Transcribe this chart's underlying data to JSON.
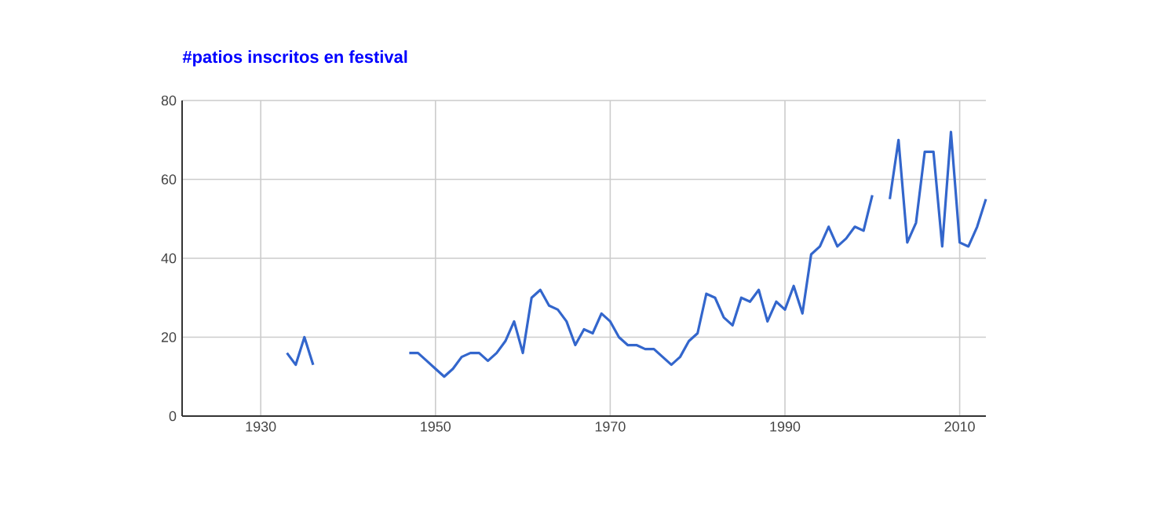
{
  "chart_data": {
    "type": "line",
    "title": "#patios inscritos en festival",
    "x": [
      1933,
      1934,
      1935,
      1936,
      1937,
      1947,
      1948,
      1949,
      1950,
      1951,
      1952,
      1953,
      1954,
      1955,
      1956,
      1957,
      1958,
      1959,
      1960,
      1961,
      1962,
      1963,
      1964,
      1965,
      1966,
      1967,
      1968,
      1969,
      1970,
      1971,
      1972,
      1973,
      1974,
      1975,
      1976,
      1977,
      1978,
      1979,
      1980,
      1981,
      1982,
      1983,
      1984,
      1985,
      1986,
      1987,
      1988,
      1989,
      1990,
      1991,
      1992,
      1993,
      1994,
      1995,
      1996,
      1997,
      1998,
      1999,
      2000,
      2001,
      2002,
      2003,
      2004,
      2005,
      2006,
      2007,
      2008,
      2009,
      2010,
      2011,
      2012,
      2013
    ],
    "series": [
      {
        "color": "#3366cc",
        "values": [
          16,
          13,
          20,
          13,
          null,
          16,
          16,
          14,
          12,
          10,
          12,
          15,
          16,
          16,
          14,
          16,
          19,
          24,
          16,
          30,
          32,
          28,
          27,
          24,
          18,
          22,
          21,
          26,
          24,
          20,
          18,
          18,
          17,
          17,
          15,
          13,
          15,
          19,
          21,
          31,
          30,
          25,
          23,
          30,
          29,
          32,
          24,
          29,
          27,
          33,
          26,
          41,
          43,
          48,
          43,
          45,
          48,
          47,
          56,
          null,
          55,
          70,
          44,
          49,
          67,
          67,
          43,
          72,
          44,
          43,
          48,
          55
        ]
      }
    ],
    "xlim": [
      1921,
      2013
    ],
    "ylim": [
      0,
      80
    ],
    "xticks": [
      1930,
      1950,
      1970,
      1990,
      2010
    ],
    "yticks": [
      0,
      20,
      40,
      60,
      80
    ],
    "grid": true,
    "marker": "none",
    "line_style": "solid"
  }
}
